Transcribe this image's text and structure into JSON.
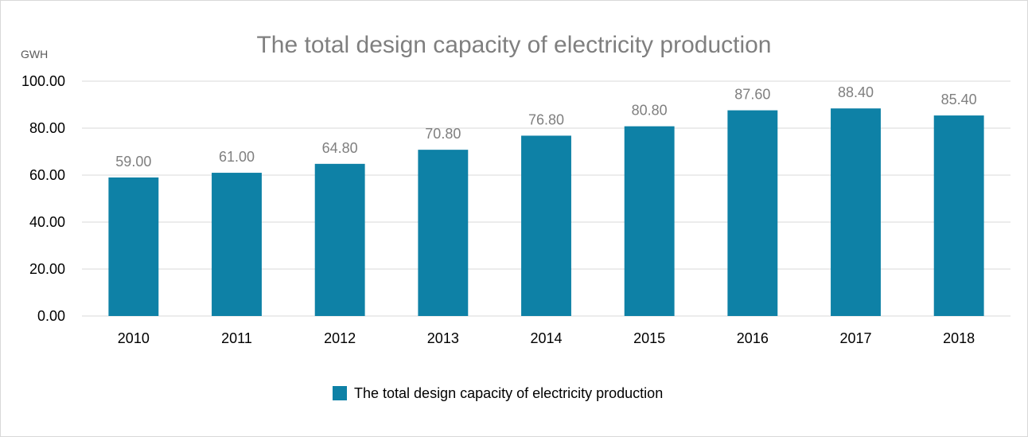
{
  "chart_data": {
    "type": "bar",
    "title": "The total design capacity of electricity production",
    "ylabel": "GWH",
    "xlabel": "",
    "ylim": [
      0,
      100
    ],
    "yticks": [
      "0.00",
      "20.00",
      "40.00",
      "60.00",
      "80.00",
      "100.00"
    ],
    "categories": [
      "2010",
      "2011",
      "2012",
      "2013",
      "2014",
      "2015",
      "2016",
      "2017",
      "2018"
    ],
    "series": [
      {
        "name": "The total design capacity of electricity production",
        "color": "#0e81a6",
        "values": [
          59.0,
          61.0,
          64.8,
          70.8,
          76.8,
          80.8,
          87.6,
          88.4,
          85.4
        ],
        "labels": [
          "59.00",
          "61.00",
          "64.80",
          "70.80",
          "76.80",
          "80.80",
          "87.60",
          "88.40",
          "85.40"
        ]
      }
    ],
    "grid": true,
    "legend_position": "bottom"
  }
}
